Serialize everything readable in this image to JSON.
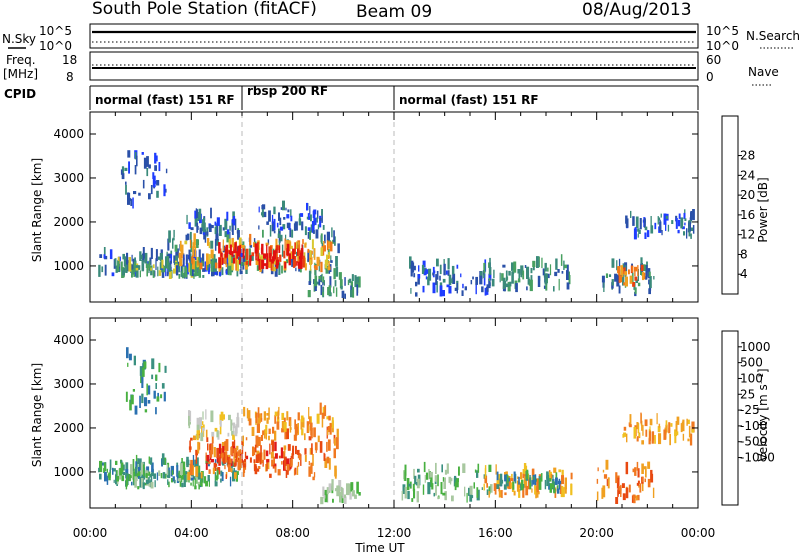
{
  "header": {
    "station": "South Pole Station (fitACF)",
    "beam": "Beam 09",
    "date": "08/Aug/2013"
  },
  "strip_panels": {
    "nsky": {
      "label": "N.Sky",
      "ticks": [
        "10^5",
        "10^0"
      ]
    },
    "nsearch": {
      "label": "N.Search",
      "ticks": [
        "10^5",
        "10^0"
      ]
    },
    "freq": {
      "label_top": "Freq.",
      "label_bottom": "[MHz]",
      "ticks": [
        "18",
        "8"
      ]
    },
    "nave": {
      "label": "Nave",
      "ticks": [
        "60",
        "0"
      ]
    },
    "cpid": {
      "label": "CPID"
    }
  },
  "modes": [
    {
      "label": "normal (fast) 151 RF",
      "start_ut": 0.0,
      "end_ut": 6.0
    },
    {
      "label": "rbsp 200 RF",
      "start_ut": 6.0,
      "end_ut": 12.0
    },
    {
      "label": "normal (fast) 151 RF",
      "start_ut": 12.0,
      "end_ut": 24.0
    }
  ],
  "colorbars": {
    "power": {
      "label": "Power [dB]",
      "ticks": [
        "4",
        "8",
        "12",
        "16",
        "20",
        "24",
        "28"
      ],
      "colors": [
        "#1e3cff",
        "#2a50a8",
        "#3a8a7a",
        "#48a060",
        "#d8c830",
        "#f0a020",
        "#f07818",
        "#e84010",
        "#e01010"
      ]
    },
    "velocity": {
      "label": "Velocity [m s⁻¹]",
      "ticks": [
        "1000",
        "500",
        "100",
        "25",
        "-25",
        "-100",
        "-500",
        "-1000"
      ],
      "colors": [
        "#2040c0",
        "#2a70b0",
        "#3a9080",
        "#48b040",
        "#a8c8a0",
        "#c8c8c8",
        "#f0c020",
        "#f0a020",
        "#f07820",
        "#e84810",
        "#e01818"
      ]
    }
  },
  "chart_data": [
    {
      "type": "heatmap",
      "title": "",
      "quantity": "Power [dB]",
      "xlabel": "Time UT",
      "ylabel": "Slant Range [km]",
      "xlim": [
        0,
        24
      ],
      "ylim": [
        180,
        4500
      ],
      "xticks": [
        "00:00",
        "04:00",
        "08:00",
        "12:00",
        "16:00",
        "20:00",
        "00:00"
      ],
      "yticks": [
        1000,
        2000,
        3000,
        4000
      ],
      "patches": [
        {
          "t": [
            0.3,
            6.0
          ],
          "r": [
            700,
            1200
          ],
          "level": 1
        },
        {
          "t": [
            1.0,
            4.5
          ],
          "r": [
            700,
            1000
          ],
          "level": 3
        },
        {
          "t": [
            3.0,
            9.8
          ],
          "r": [
            750,
            1700
          ],
          "level": 2
        },
        {
          "t": [
            3.5,
            9.5
          ],
          "r": [
            850,
            1500
          ],
          "level": 5
        },
        {
          "t": [
            5.0,
            8.5
          ],
          "r": [
            900,
            1300
          ],
          "level": 8
        },
        {
          "t": [
            6.5,
            9.2
          ],
          "r": [
            1700,
            2300
          ],
          "level": 1
        },
        {
          "t": [
            3.8,
            5.8
          ],
          "r": [
            1650,
            2100
          ],
          "level": 1
        },
        {
          "t": [
            8.5,
            10.6
          ],
          "r": [
            250,
            700
          ],
          "level": 2
        },
        {
          "t": [
            12.5,
            15.8
          ],
          "r": [
            300,
            1000
          ],
          "level": 1
        },
        {
          "t": [
            15.5,
            19.0
          ],
          "r": [
            400,
            1000
          ],
          "level": 2
        },
        {
          "t": [
            20.2,
            22.3
          ],
          "r": [
            300,
            1000
          ],
          "level": 2
        },
        {
          "t": [
            20.8,
            21.8
          ],
          "r": [
            500,
            900
          ],
          "level": 6
        },
        {
          "t": [
            21.0,
            23.8
          ],
          "r": [
            1600,
            2100
          ],
          "level": 1
        },
        {
          "t": [
            1.2,
            3.0
          ],
          "r": [
            2300,
            3600
          ],
          "level": 1
        }
      ]
    },
    {
      "type": "heatmap",
      "title": "",
      "quantity": "Velocity [m s⁻¹]",
      "xlabel": "Time UT",
      "ylabel": "Slant Range [km]",
      "xlim": [
        0,
        24
      ],
      "ylim": [
        180,
        4500
      ],
      "xticks": [
        "00:00",
        "04:00",
        "08:00",
        "12:00",
        "16:00",
        "20:00",
        "00:00"
      ],
      "yticks": [
        1000,
        2000,
        3000,
        4000
      ],
      "patches": [
        {
          "t": [
            0.3,
            6.0
          ],
          "r": [
            650,
            1200
          ],
          "level": 2
        },
        {
          "t": [
            1.0,
            4.5
          ],
          "r": [
            600,
            950
          ],
          "level": 3
        },
        {
          "t": [
            3.8,
            9.8
          ],
          "r": [
            800,
            1800
          ],
          "level": 8
        },
        {
          "t": [
            4.5,
            8.5
          ],
          "r": [
            1000,
            1500
          ],
          "level": 9
        },
        {
          "t": [
            6.0,
            9.6
          ],
          "r": [
            1700,
            2300
          ],
          "level": 7
        },
        {
          "t": [
            3.8,
            5.8
          ],
          "r": [
            1700,
            2200
          ],
          "level": 5
        },
        {
          "t": [
            9.0,
            10.6
          ],
          "r": [
            250,
            600
          ],
          "level": 4
        },
        {
          "t": [
            12.3,
            15.8
          ],
          "r": [
            300,
            1000
          ],
          "level": 3
        },
        {
          "t": [
            15.5,
            19.0
          ],
          "r": [
            400,
            1000
          ],
          "level": 7
        },
        {
          "t": [
            16.0,
            18.5
          ],
          "r": [
            500,
            850
          ],
          "level": 2
        },
        {
          "t": [
            20.0,
            22.3
          ],
          "r": [
            250,
            1100
          ],
          "level": 8
        },
        {
          "t": [
            21.0,
            23.8
          ],
          "r": [
            1600,
            2100
          ],
          "level": 7
        },
        {
          "t": [
            1.2,
            3.0
          ],
          "r": [
            2300,
            3600
          ],
          "level": 2
        }
      ]
    }
  ]
}
